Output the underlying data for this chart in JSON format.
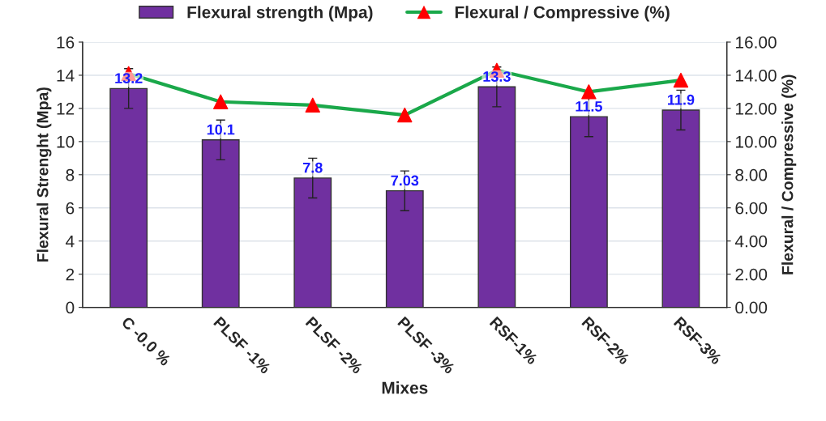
{
  "chart_data": {
    "type": "bar",
    "xlabel": "Mixes",
    "ylabel": "Flexural Strenght (Mpa)",
    "y2label": "Flexural / Compressive (%)",
    "categories": [
      "C -0.0 %",
      "PLSF -1%",
      "PLSF -2%",
      "PLSF -3%",
      "RSF-1%",
      "RSF-2%",
      "RSF-3%"
    ],
    "series": [
      {
        "name": "Flexural strength (Mpa)",
        "color": "#7030a0",
        "values": [
          13.2,
          10.1,
          7.8,
          7.03,
          13.3,
          11.5,
          11.9
        ],
        "errors": [
          1.2,
          1.2,
          1.2,
          1.2,
          1.2,
          1.2,
          1.2
        ],
        "value_labels": [
          "13.2",
          "10.1",
          "7.8",
          "7.03",
          "13.3",
          "11.5",
          "11.9"
        ]
      },
      {
        "name": "Flexural / Compressive (%)",
        "type": "line",
        "axis": "y2",
        "color": "#1aa84a",
        "colors": [
          "#ff0000",
          "#ff0000",
          "#ff0000",
          "#ff0000",
          "#ff0000",
          "#ff0000",
          "#ff0000"
        ],
        "marker": "triangle",
        "values": [
          14.1,
          12.4,
          12.2,
          11.6,
          14.3,
          13.0,
          13.7
        ]
      }
    ],
    "ylim": [
      0,
      16
    ],
    "yticks": [
      0,
      2,
      4,
      6,
      8,
      10,
      12,
      14,
      16
    ],
    "y2lim": [
      0,
      16
    ],
    "y2ticks": [
      {
        "value": 0,
        "label": "0.00"
      },
      {
        "value": 2,
        "label": "2.00"
      },
      {
        "value": 4,
        "label": "4.00"
      },
      {
        "value": 6,
        "label": "6.00"
      },
      {
        "value": 8,
        "label": "8.00"
      },
      {
        "value": 10,
        "label": "10.00"
      },
      {
        "value": 12,
        "label": "12.00"
      },
      {
        "value": 14,
        "label": "14.00"
      },
      {
        "value": 16,
        "label": "16.00"
      }
    ],
    "grid": "y",
    "legend": "top"
  }
}
